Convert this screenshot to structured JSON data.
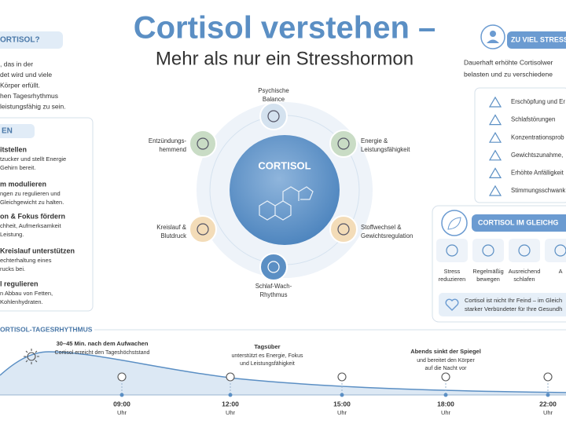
{
  "header": {
    "title": "Cortisol verstehen –",
    "subtitle": "Mehr als nur ein Stresshormon"
  },
  "intro": {
    "heading": "ORTISOL?",
    "lines": [
      ", das in der",
      "det wird und viele",
      "Körper erfüllt.",
      "hen Tagesrhythmus",
      "leistungsfähig zu sein."
    ]
  },
  "functions": {
    "heading": "EN",
    "items": [
      {
        "title": "itstellen",
        "lines": [
          "tzucker und stellt Energie",
          "Gehirn bereit."
        ]
      },
      {
        "title": "m modulieren",
        "lines": [
          "ngen zu regulieren und",
          "Gleichgewicht zu halten."
        ]
      },
      {
        "title": "on & Fokus fördern",
        "lines": [
          "chheit, Aufmerksamkeit",
          "Leistung."
        ]
      },
      {
        "title": "Kreislauf unterstützen",
        "lines": [
          "echterhaltung eines",
          "rucks bei."
        ]
      },
      {
        "title": "l regulieren",
        "lines": [
          "n Abbau von Fetten,",
          "Kohlenhydraten."
        ]
      }
    ]
  },
  "diagram": {
    "center": "CORTISOL",
    "nodes": [
      {
        "lines": [
          "Psychische",
          "Balance"
        ]
      },
      {
        "lines": [
          "Energie &",
          "Leistungsfähigkeit"
        ]
      },
      {
        "lines": [
          "Stoffwechsel &",
          "Gewichtsregulation"
        ]
      },
      {
        "lines": [
          "Schlaf-Wach-",
          "Rhythmus"
        ]
      },
      {
        "lines": [
          "Kreislauf &",
          "Blutdruck"
        ]
      },
      {
        "lines": [
          "Entzündungs-",
          "hemmend"
        ]
      }
    ]
  },
  "stress": {
    "heading": "ZU VIEL STRESS",
    "lines": [
      "Dauerhaft erhöhte Cortisolwer",
      "belasten und zu verschiedene"
    ],
    "items": [
      "Erschöpfung und Er",
      "Schlafstörungen",
      "Konzentrationsprob",
      "Gewichtszunahme,",
      "Erhöhte Anfälligkeit",
      "Stimmungsschwank"
    ]
  },
  "balance": {
    "heading": "CORTISOL IM GLEICHG",
    "items": [
      {
        "lines": [
          "Stress",
          "reduzieren"
        ]
      },
      {
        "lines": [
          "Regelmäßig",
          "bewegen"
        ]
      },
      {
        "lines": [
          "Ausreichend",
          "schlafen"
        ]
      },
      {
        "lines": [
          "A"
        ]
      }
    ],
    "note": [
      "Cortisol ist nicht Ihr Feind – im Gleich",
      "starker Verbündeter für Ihre Gesundh"
    ]
  },
  "rhythm": {
    "heading": "ORTISOL-TAGESRHYTHMUS",
    "annotations": [
      {
        "title": "30–45 Min. nach dem Aufwachen",
        "lines": [
          "Cortisol erreicht den Tageshöchststand"
        ]
      },
      {
        "title": "Tagsüber",
        "lines": [
          "unterstützt es Energie, Fokus",
          "und Leistungsfähigkeit"
        ]
      },
      {
        "title": "Abends sinkt der Spiegel",
        "lines": [
          "und bereitet den Körper",
          "auf die Nacht vor"
        ]
      }
    ],
    "times": [
      {
        "time": "09:00",
        "unit": "Uhr"
      },
      {
        "time": "12:00",
        "unit": "Uhr"
      },
      {
        "time": "15:00",
        "unit": "Uhr"
      },
      {
        "time": "18:00",
        "unit": "Uhr"
      },
      {
        "time": "22:00",
        "unit": "Uhr"
      }
    ]
  }
}
